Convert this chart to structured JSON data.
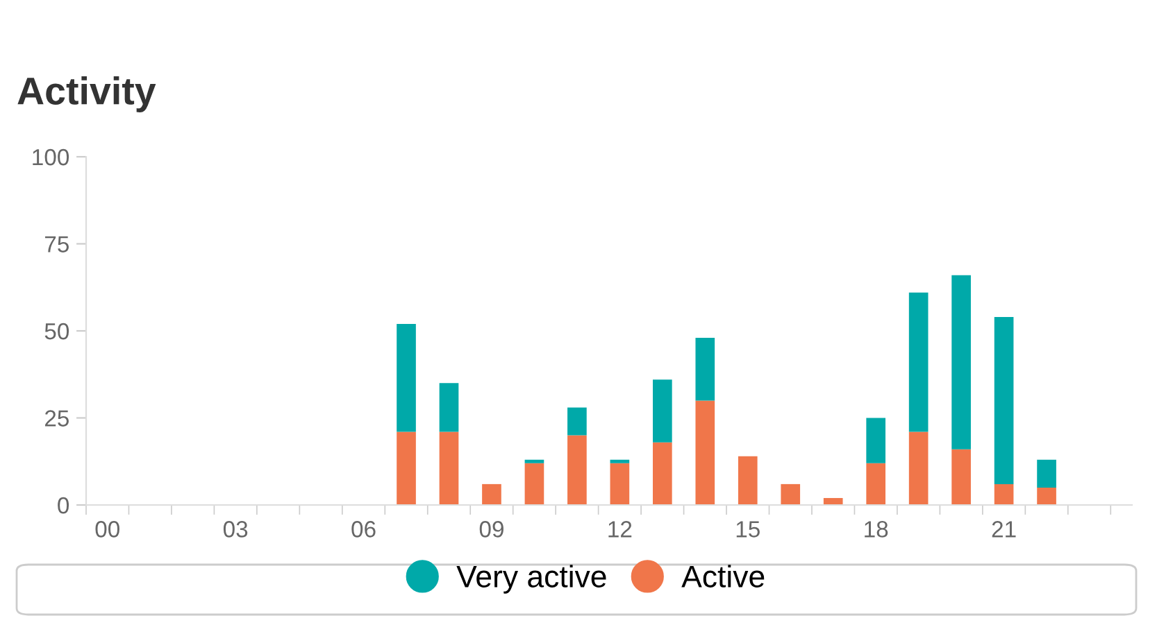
{
  "chart_data": {
    "type": "bar",
    "title": "Activity",
    "stacked": true,
    "categories": [
      "00",
      null,
      null,
      "03",
      null,
      null,
      "06",
      null,
      null,
      "09",
      null,
      null,
      "12",
      null,
      null,
      "15",
      null,
      null,
      "18",
      null,
      null,
      "21",
      null,
      null
    ],
    "series": [
      {
        "name": "Active",
        "color": "#f0764a",
        "values": [
          0,
          0,
          0,
          0,
          0,
          0,
          0,
          21,
          21,
          6,
          12,
          20,
          12,
          18,
          30,
          14,
          6,
          2,
          12,
          21,
          16,
          6,
          5,
          0
        ]
      },
      {
        "name": "Very active",
        "color": "#00a9a9",
        "values": [
          0,
          0,
          0,
          0,
          0,
          0,
          0,
          31,
          14,
          0,
          1,
          8,
          1,
          18,
          18,
          0,
          0,
          0,
          13,
          40,
          50,
          48,
          8,
          0
        ]
      }
    ],
    "ylim": [
      0,
      100
    ],
    "yticks": [
      0,
      25,
      50,
      75,
      100
    ],
    "grid": false,
    "legend": "bottom",
    "marker": "circle"
  }
}
